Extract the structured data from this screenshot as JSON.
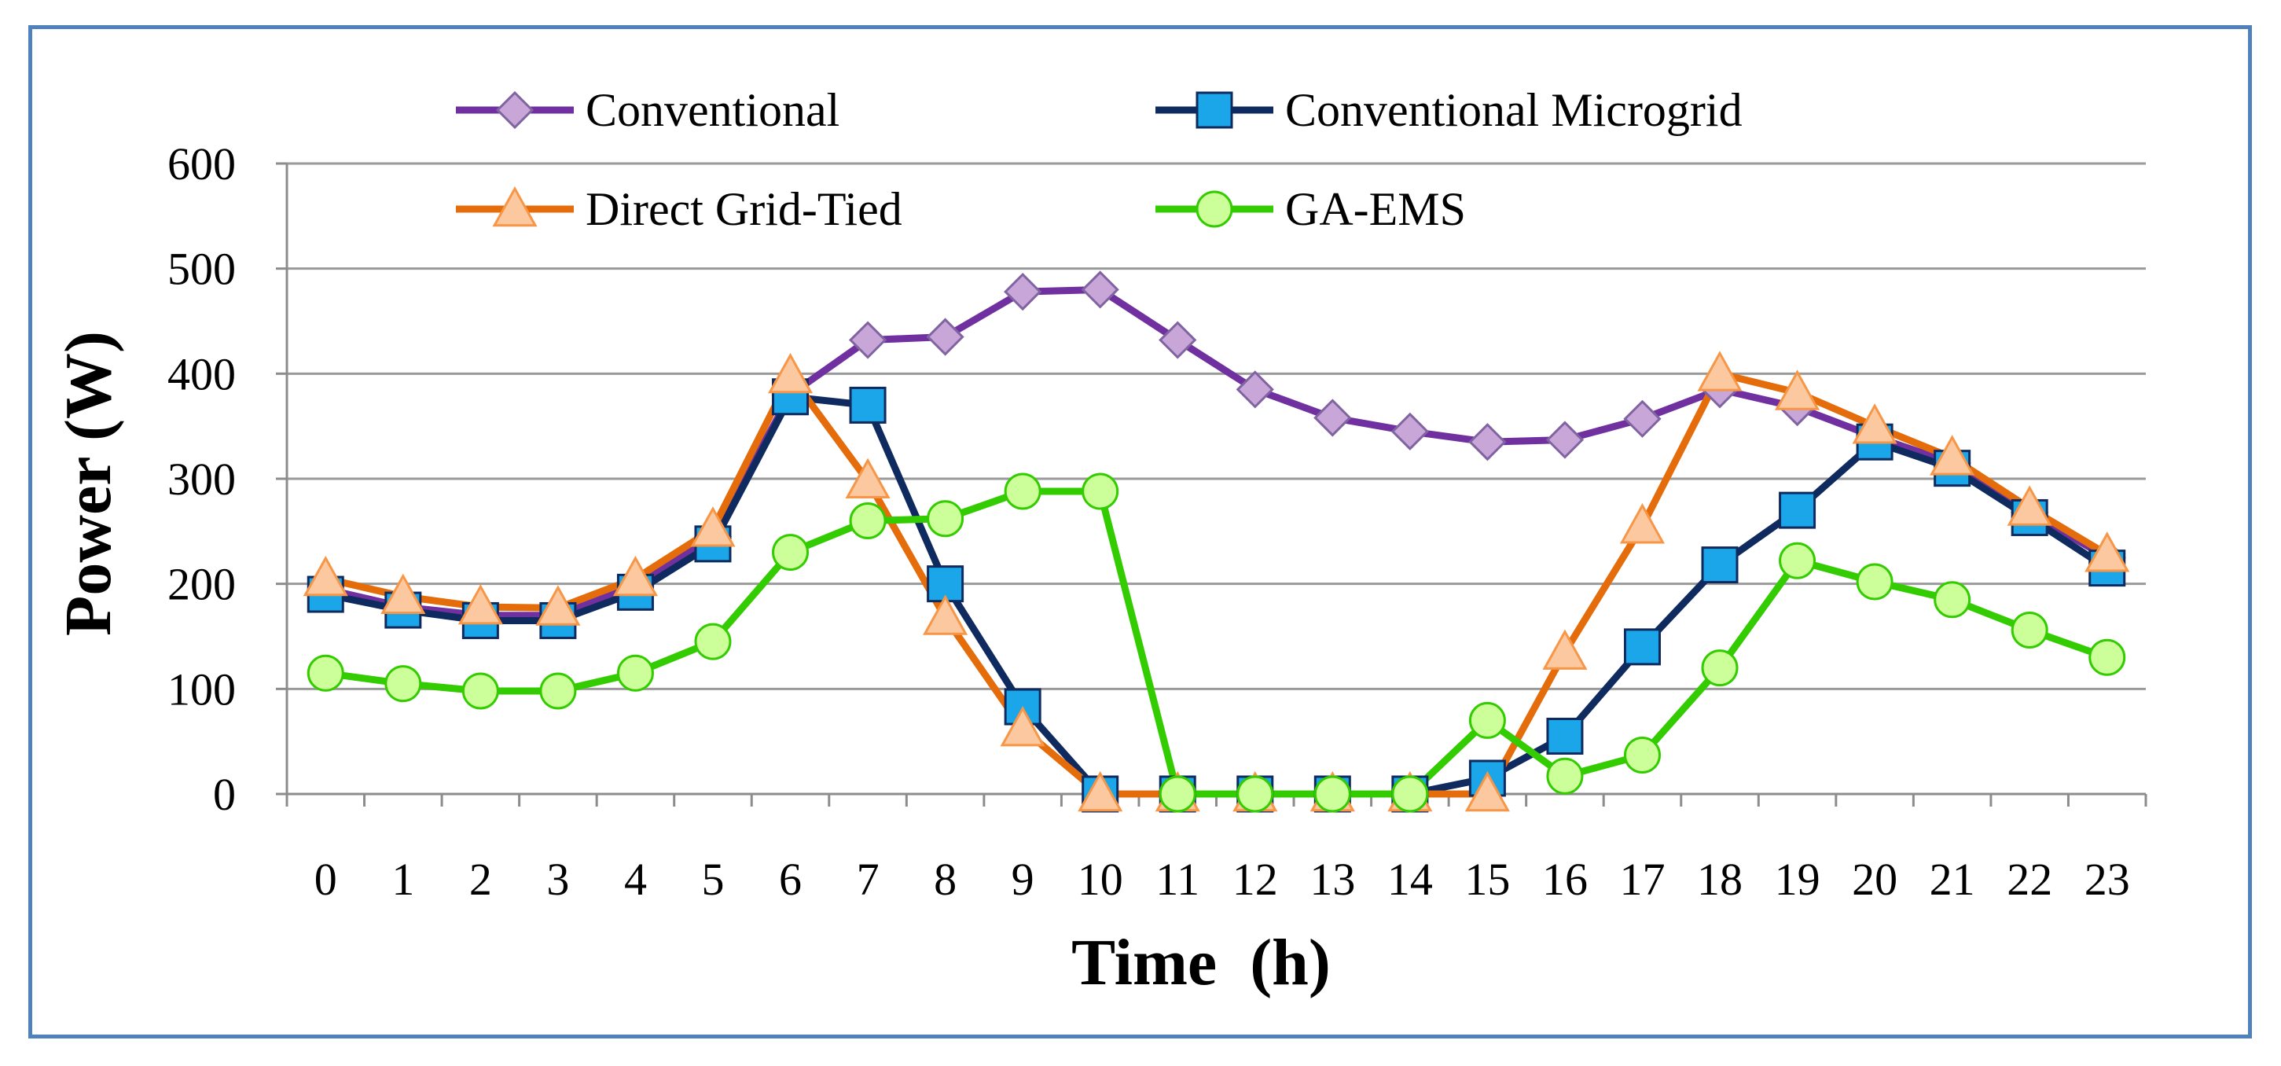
{
  "chart_data": {
    "type": "line",
    "title": "",
    "xlabel": "Time  (h)",
    "ylabel": "Power (W)",
    "ylim": [
      0,
      600
    ],
    "yticks": [
      "0",
      "100",
      "200",
      "300",
      "400",
      "500",
      "600"
    ],
    "grid": true,
    "legend": "top",
    "categories": [
      "0",
      "1",
      "2",
      "3",
      "4",
      "5",
      "6",
      "7",
      "8",
      "9",
      "10",
      "11",
      "12",
      "13",
      "14",
      "15",
      "16",
      "17",
      "18",
      "19",
      "20",
      "21",
      "22",
      "23"
    ],
    "series": [
      {
        "name": "Conventional",
        "color": "#7030a0",
        "marker": "diamond",
        "marker_fill": "#c9a6d8",
        "values": [
          195,
          178,
          170,
          170,
          198,
          245,
          380,
          432,
          435,
          478,
          480,
          432,
          385,
          358,
          345,
          335,
          337,
          357,
          385,
          368,
          340,
          315,
          268,
          225
        ]
      },
      {
        "name": "Conventional Microgrid",
        "color": "#0f2a5f",
        "marker": "square",
        "marker_fill": "#1aa6e8",
        "values": [
          190,
          175,
          165,
          165,
          192,
          238,
          378,
          370,
          200,
          83,
          0,
          0,
          0,
          0,
          0,
          15,
          55,
          140,
          218,
          270,
          335,
          310,
          263,
          215
        ]
      },
      {
        "name": "Direct Grid-Tied",
        "color": "#e46c0a",
        "marker": "triangle",
        "marker_fill": "#fbc8a0",
        "values": [
          205,
          188,
          178,
          177,
          205,
          252,
          398,
          298,
          168,
          62,
          0,
          0,
          0,
          0,
          0,
          0,
          135,
          255,
          400,
          382,
          350,
          320,
          272,
          228
        ]
      },
      {
        "name": "GA-EMS",
        "color": "#33cc00",
        "marker": "circle",
        "marker_fill": "#ccff99",
        "values": [
          115,
          105,
          98,
          98,
          115,
          145,
          230,
          260,
          262,
          288,
          288,
          0,
          0,
          0,
          0,
          70,
          17,
          37,
          120,
          222,
          202,
          185,
          156,
          130
        ]
      }
    ]
  }
}
